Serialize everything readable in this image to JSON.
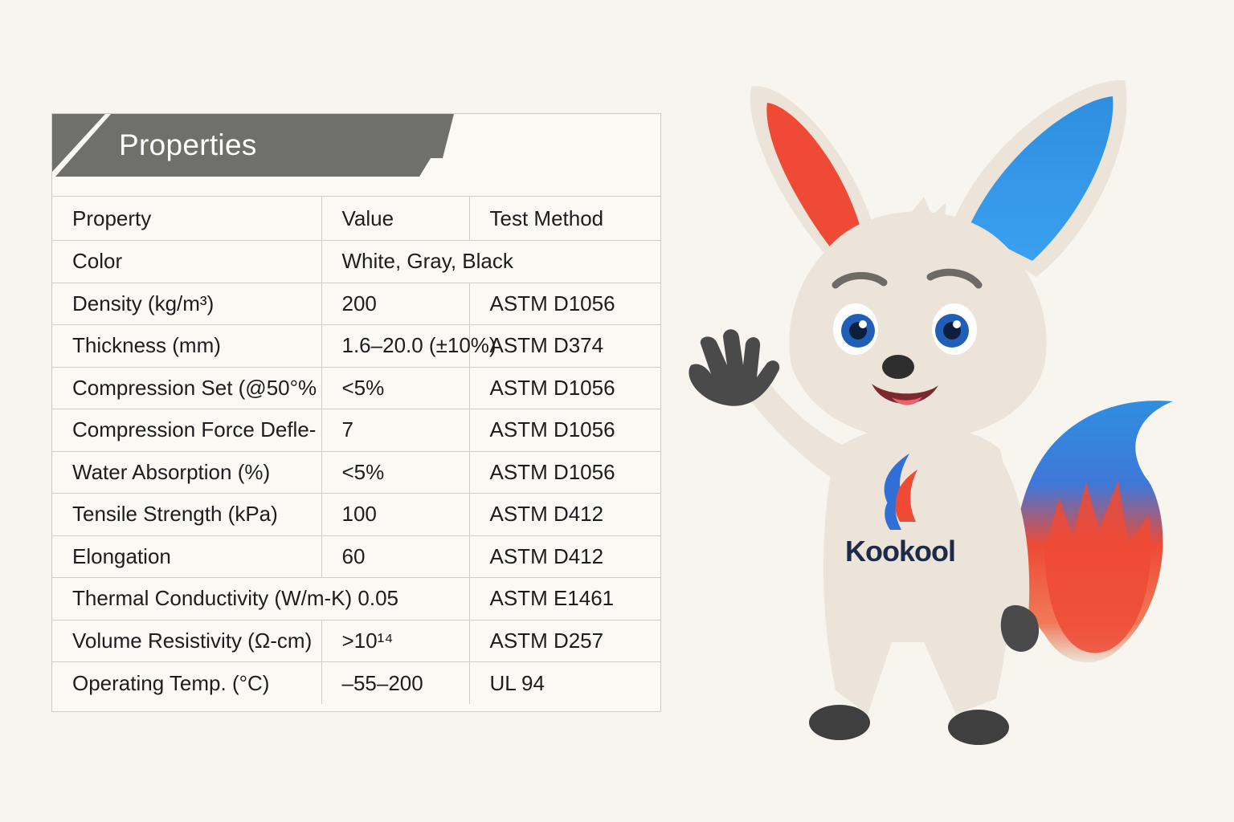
{
  "banner": {
    "title": "Properties"
  },
  "table": {
    "headers": [
      "Property",
      "Value",
      "Test Method"
    ],
    "rows": [
      {
        "property": "Color",
        "value": "White, Gray, Black",
        "method": ""
      },
      {
        "property": "Density (kg/m³)",
        "value": "200",
        "method": "ASTM D1056"
      },
      {
        "property": "Thickness (mm)",
        "value": "1.6–20.0 (±10%)",
        "method": "ASTM D374"
      },
      {
        "property": "Compression Set (@50°%",
        "value": "<5%",
        "method": "ASTM D1056"
      },
      {
        "property": "Compression Force Defle-",
        "value": "7",
        "method": "ASTM D1056"
      },
      {
        "property": "Water Absorption (%)",
        "value": "<5%",
        "method": "ASTM D1056"
      },
      {
        "property": "Tensile Strength (kPa)",
        "value": "100",
        "method": "ASTM D412"
      },
      {
        "property": "Elongation",
        "value": "60",
        "method": "ASTM D412"
      },
      {
        "property": "Thermal Conductivity (W/m-K)",
        "value": "0.05",
        "method": "ASTM E1461"
      },
      {
        "property": "Volume Resistivity (Ω-cm)",
        "value": ">10¹⁴",
        "method": "ASTM D257"
      },
      {
        "property": "Operating Temp. (°C)",
        "value": "–55–200",
        "method": "UL 94"
      }
    ]
  },
  "mascot": {
    "brand": "Kookool",
    "colors": {
      "fur": "#ece4d8",
      "red": "#ee4a35",
      "blue": "#2f8ee0",
      "paw": "#4a4a4a",
      "eye": "#1f5fb8"
    }
  }
}
